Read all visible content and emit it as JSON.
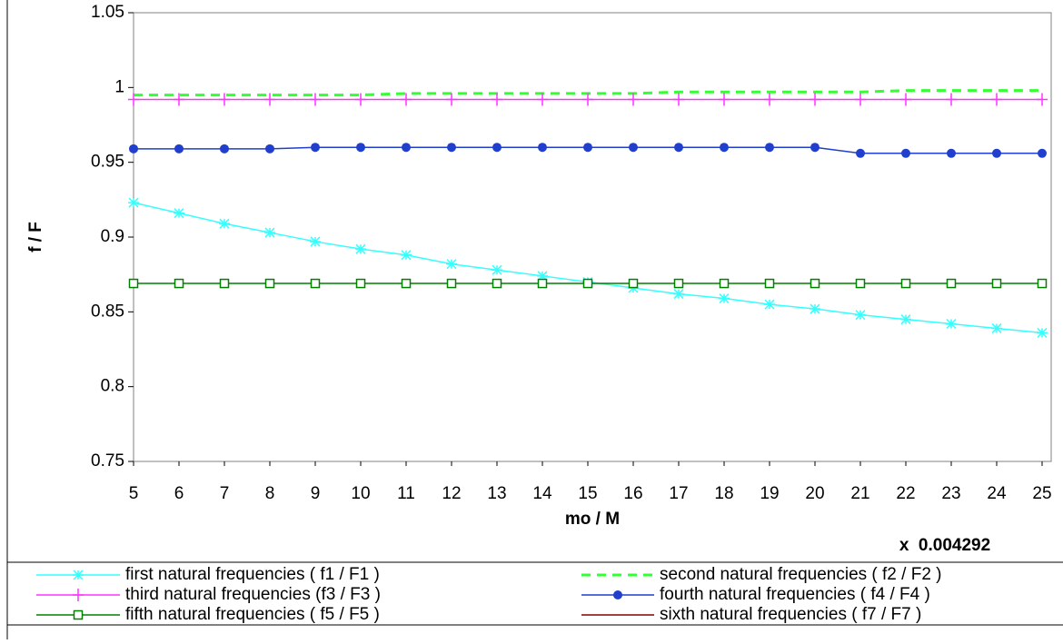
{
  "chart_data": {
    "type": "line",
    "x": [
      5,
      6,
      7,
      8,
      9,
      10,
      11,
      12,
      13,
      14,
      15,
      16,
      17,
      18,
      19,
      20,
      21,
      22,
      23,
      24,
      25
    ],
    "xlim": [
      5,
      25.2
    ],
    "xticks": [
      5,
      6,
      7,
      8,
      9,
      10,
      11,
      12,
      13,
      14,
      15,
      16,
      17,
      18,
      19,
      20,
      21,
      22,
      23,
      24,
      25
    ],
    "ylim": [
      0.75,
      1.05
    ],
    "yticks": [
      0.75,
      0.8,
      0.85,
      0.9,
      0.95,
      1,
      1.05
    ],
    "y_label": "f / F",
    "x_label": "mo / M",
    "annotation": "x  0.004292",
    "series": [
      {
        "name": "first natural frequencies ( f1 / F1 )",
        "color": "#33ffff",
        "marker": "asterisk",
        "values": [
          0.923,
          0.916,
          0.909,
          0.903,
          0.897,
          0.892,
          0.888,
          0.882,
          0.878,
          0.874,
          0.87,
          0.866,
          0.862,
          0.859,
          0.855,
          0.852,
          0.848,
          0.845,
          0.842,
          0.839,
          0.836
        ]
      },
      {
        "name": "second natural frequencies ( f2 / F2 )",
        "color": "#33ff33",
        "dashed": true,
        "values": [
          0.995,
          0.995,
          0.995,
          0.995,
          0.995,
          0.995,
          0.996,
          0.996,
          0.996,
          0.996,
          0.996,
          0.996,
          0.997,
          0.997,
          0.997,
          0.997,
          0.997,
          0.998,
          0.998,
          0.998,
          0.998
        ]
      },
      {
        "name": "third natural frequencies (f3 / F3 )",
        "color": "#ff33ff",
        "marker": "plus",
        "values": [
          0.992,
          0.992,
          0.992,
          0.992,
          0.992,
          0.992,
          0.992,
          0.992,
          0.992,
          0.992,
          0.992,
          0.992,
          0.992,
          0.992,
          0.992,
          0.992,
          0.992,
          0.992,
          0.992,
          0.992,
          0.992
        ]
      },
      {
        "name": "fourth natural frequencies ( f4 / F4 )",
        "color": "#1f3fcc",
        "marker": "circle",
        "values": [
          0.959,
          0.959,
          0.959,
          0.959,
          0.96,
          0.96,
          0.96,
          0.96,
          0.96,
          0.96,
          0.96,
          0.96,
          0.96,
          0.96,
          0.96,
          0.96,
          0.956,
          0.956,
          0.956,
          0.956,
          0.956
        ]
      },
      {
        "name": "fifth natural frequencies ( f5 / F5 )",
        "color": "#008000",
        "marker": "square",
        "values": [
          0.869,
          0.869,
          0.869,
          0.869,
          0.869,
          0.869,
          0.869,
          0.869,
          0.869,
          0.869,
          0.869,
          0.869,
          0.869,
          0.869,
          0.869,
          0.869,
          0.869,
          0.869,
          0.869,
          0.869,
          0.869
        ]
      },
      {
        "name": "sixth natural frequencies ( f7 / F7 )",
        "color": "#800000",
        "values": [
          null,
          null,
          null,
          null,
          null,
          null,
          null,
          null,
          null,
          null,
          null,
          null,
          null,
          null,
          null,
          null,
          null,
          null,
          null,
          null,
          null
        ]
      }
    ]
  }
}
